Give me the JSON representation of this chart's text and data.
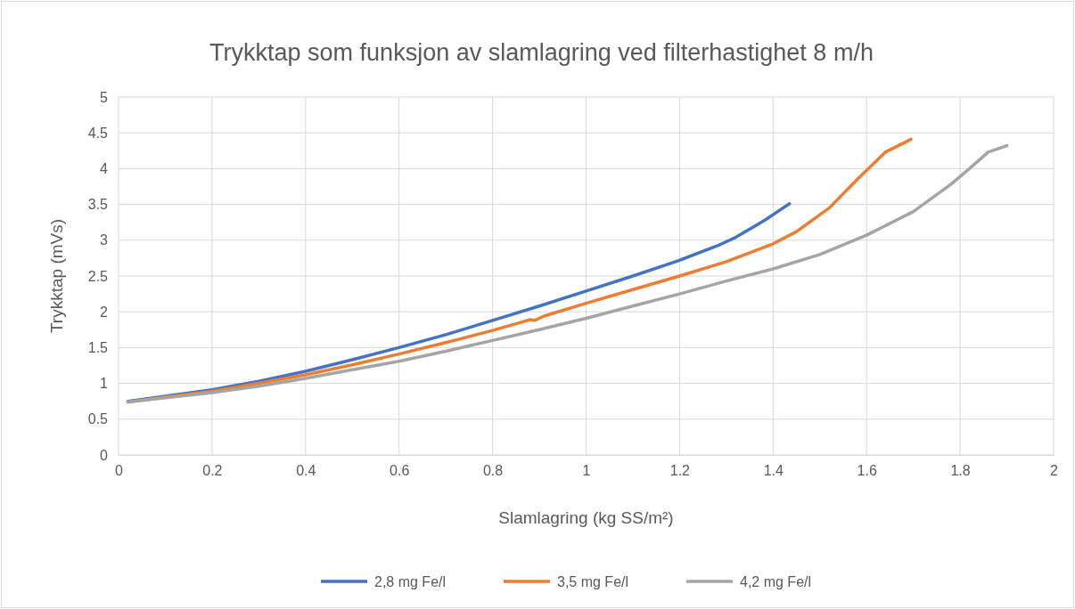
{
  "chart_data": {
    "type": "line",
    "title": "Trykktap som funksjon av slamlagring ved filterhastighet 8 m/h",
    "xlabel": "Slamlagring (kg SS/m²)",
    "ylabel": "Trykktap (mVs)",
    "xlim": [
      0,
      2
    ],
    "xticks": [
      0,
      0.2,
      0.4,
      0.6,
      0.8,
      1,
      1.2,
      1.4,
      1.6,
      1.8,
      2
    ],
    "ylim": [
      0,
      5
    ],
    "yticks": [
      0,
      0.5,
      1,
      1.5,
      2,
      2.5,
      3,
      3.5,
      4,
      4.5,
      5
    ],
    "grid": true,
    "legend": "bottom",
    "marker": "none",
    "line_style": "solid",
    "series": [
      {
        "name": "2,8 mg Fe/l",
        "color": "#4472c4",
        "x": [
          0.02,
          0.1,
          0.2,
          0.3,
          0.4,
          0.5,
          0.6,
          0.7,
          0.8,
          0.9,
          1.0,
          1.1,
          1.2,
          1.28,
          1.32,
          1.38,
          1.435
        ],
        "values": [
          0.75,
          0.82,
          0.91,
          1.03,
          1.17,
          1.33,
          1.5,
          1.68,
          1.88,
          2.08,
          2.29,
          2.5,
          2.72,
          2.92,
          3.04,
          3.27,
          3.51
        ]
      },
      {
        "name": "3,5 mg Fe/l",
        "color": "#ed7d31",
        "x": [
          0.02,
          0.1,
          0.2,
          0.3,
          0.4,
          0.5,
          0.6,
          0.7,
          0.8,
          0.87,
          0.88,
          0.89,
          0.91,
          1.0,
          1.1,
          1.2,
          1.3,
          1.4,
          1.45,
          1.52,
          1.58,
          1.64,
          1.695
        ],
        "values": [
          0.74,
          0.81,
          0.89,
          1.0,
          1.12,
          1.26,
          1.41,
          1.57,
          1.74,
          1.87,
          1.89,
          1.88,
          1.94,
          2.12,
          2.31,
          2.5,
          2.7,
          2.95,
          3.12,
          3.45,
          3.85,
          4.23,
          4.41
        ]
      },
      {
        "name": "4,2 mg Fe/l",
        "color": "#a5a5a5",
        "x": [
          0.02,
          0.1,
          0.2,
          0.3,
          0.4,
          0.5,
          0.6,
          0.7,
          0.8,
          0.9,
          1.0,
          1.1,
          1.2,
          1.3,
          1.4,
          1.5,
          1.6,
          1.7,
          1.78,
          1.82,
          1.86,
          1.9
        ],
        "values": [
          0.74,
          0.8,
          0.87,
          0.96,
          1.07,
          1.19,
          1.31,
          1.45,
          1.6,
          1.75,
          1.91,
          2.08,
          2.25,
          2.43,
          2.6,
          2.8,
          3.07,
          3.4,
          3.78,
          4.0,
          4.23,
          4.32
        ]
      }
    ]
  }
}
